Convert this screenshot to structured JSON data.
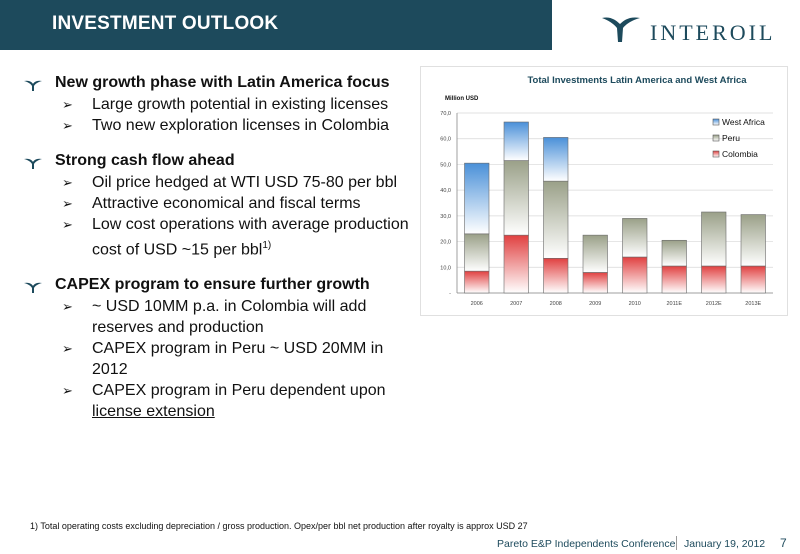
{
  "header": {
    "title": "INVESTMENT OUTLOOK"
  },
  "logo": {
    "text": "INTEROIL"
  },
  "sections": [
    {
      "heading": "New growth phase with Latin America focus",
      "items": [
        {
          "text": "Large growth potential in existing licenses"
        },
        {
          "text": "Two new exploration licenses in Colombia"
        }
      ]
    },
    {
      "heading": "Strong cash flow ahead",
      "items": [
        {
          "text": "Oil price hedged at WTI USD 75-80 per bbl"
        },
        {
          "text": "Attractive economical and fiscal terms"
        },
        {
          "text": "Low cost operations with average production cost of USD ~15 per bbl",
          "sup": "1)"
        }
      ]
    },
    {
      "heading": "CAPEX program to ensure further growth",
      "items": [
        {
          "text": "~ USD 10MM p.a. in Colombia will add reserves and production"
        },
        {
          "text": "CAPEX  program in Peru ~ USD 20MM in 2012"
        },
        {
          "text": "CAPEX program in Peru dependent upon",
          "underlined": "license extension"
        }
      ]
    }
  ],
  "chart_data": {
    "type": "bar",
    "stacked": true,
    "title": "Total Investments Latin America and West Africa",
    "ylabel": "Million USD",
    "categories": [
      "2006",
      "2007",
      "2008",
      "2009",
      "2010",
      "2011E",
      "2012E",
      "2013E"
    ],
    "series": [
      {
        "name": "Colombia",
        "color": "#e04040",
        "values": [
          8.5,
          22.5,
          13.5,
          8,
          14,
          10.5,
          10.5,
          10.5
        ]
      },
      {
        "name": "Peru",
        "color": "#9aa088",
        "values": [
          14.5,
          29,
          30,
          14.5,
          15,
          10,
          21,
          20
        ]
      },
      {
        "name": "West Africa",
        "color": "#4a90d8",
        "values": [
          27.5,
          15,
          17,
          0,
          0,
          0,
          0,
          0
        ]
      }
    ],
    "ylim": [
      0,
      70
    ],
    "yticks": [
      "-",
      "10,0",
      "20,0",
      "30,0",
      "40,0",
      "50,0",
      "60,0",
      "70,0"
    ],
    "legend": "top-right",
    "legend_order": [
      "West Africa",
      "Peru",
      "Colombia"
    ],
    "grid": true
  },
  "footnote": "1) Total operating costs excluding depreciation / gross production. Opex/per bbl net production after royalty is approx USD 27",
  "footer": {
    "conference": "Pareto E&P Independents Conference",
    "date": "January 19, 2012",
    "page": "7"
  }
}
